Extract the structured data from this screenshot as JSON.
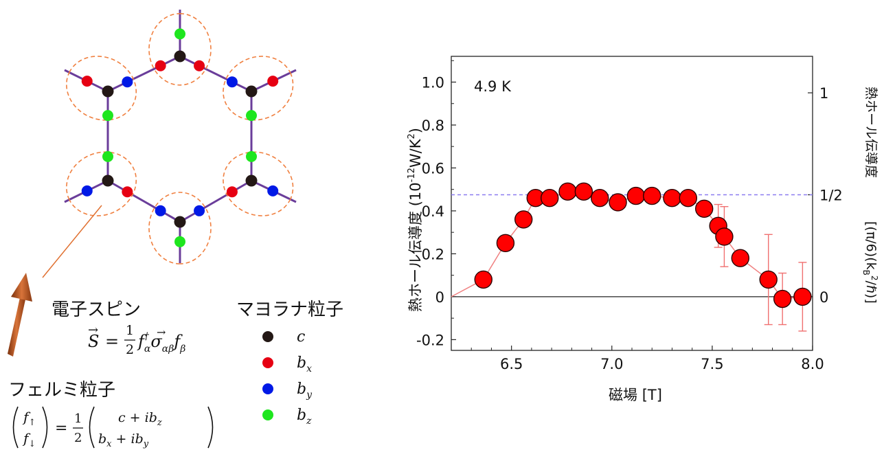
{
  "diagram": {
    "spin_title": "電子スピン",
    "spin_eq_lhs": "S",
    "spin_eq_half_num": "1",
    "spin_eq_half_den": "2",
    "fermion_title": "フェルミ粒子",
    "fermion_eq_top": "f",
    "fermion_eq_bottom": "f",
    "fermion_rhs_top": "c + ib",
    "fermion_rhs_bottom": "b",
    "majorana_title": "マヨラナ粒子",
    "legend": [
      {
        "label": "c",
        "sub": "",
        "color": "#231815"
      },
      {
        "label": "b",
        "sub": "x",
        "color": "#e60012"
      },
      {
        "label": "b",
        "sub": "y",
        "color": "#0019e6"
      },
      {
        "label": "b",
        "sub": "z",
        "color": "#1ee61e"
      }
    ],
    "bond_color": "#6a3d9a",
    "cluster_outline_color": "#f08040",
    "arrow_color": "#b5531f"
  },
  "chart_data": {
    "type": "scatter",
    "annotation": "4.9 K",
    "xlabel": "磁場 [T]",
    "ylabel": "熱ホール伝導度 (10",
    "ylabel_exp": "-12",
    "ylabel_unit": "W/K",
    "ylabel_unit_exp": "2",
    "ylabel_close": ")",
    "right_label": "熱ホール伝導度",
    "right_label_units": "[(π/6)(k",
    "xlim": [
      6.2,
      8.0
    ],
    "ylim": [
      -0.25,
      1.12
    ],
    "xticks": [
      "6.5",
      "7.0",
      "7.5",
      "8.0"
    ],
    "xtick_values": [
      6.5,
      7.0,
      7.5,
      8.0
    ],
    "yticks": [
      "-0.2",
      "0",
      "0.2",
      "0.4",
      "0.6",
      "0.8",
      "1.0"
    ],
    "ytick_values": [
      -0.2,
      0,
      0.2,
      0.4,
      0.6,
      0.8,
      1.0
    ],
    "right_ticks": [
      "0",
      "1/2",
      "1"
    ],
    "right_tick_values": [
      0,
      0.475,
      0.95
    ],
    "half_quantized_line": 0.475,
    "zero_line": 0,
    "line_start": [
      6.2,
      0.0
    ],
    "marker_color": "#ff0000",
    "line_color": "#f08080",
    "points": [
      {
        "x": 6.36,
        "y": 0.08
      },
      {
        "x": 6.47,
        "y": 0.25
      },
      {
        "x": 6.56,
        "y": 0.36
      },
      {
        "x": 6.62,
        "y": 0.46
      },
      {
        "x": 6.69,
        "y": 0.46
      },
      {
        "x": 6.78,
        "y": 0.49
      },
      {
        "x": 6.86,
        "y": 0.49
      },
      {
        "x": 6.94,
        "y": 0.46
      },
      {
        "x": 7.03,
        "y": 0.44
      },
      {
        "x": 7.12,
        "y": 0.47
      },
      {
        "x": 7.2,
        "y": 0.47
      },
      {
        "x": 7.3,
        "y": 0.46
      },
      {
        "x": 7.38,
        "y": 0.46,
        "err": 0.03
      },
      {
        "x": 7.46,
        "y": 0.41
      },
      {
        "x": 7.53,
        "y": 0.33,
        "err": 0.1
      },
      {
        "x": 7.56,
        "y": 0.28,
        "err": 0.14
      },
      {
        "x": 7.64,
        "y": 0.18
      },
      {
        "x": 7.78,
        "y": 0.08,
        "err": 0.21
      },
      {
        "x": 7.85,
        "y": -0.01,
        "err": 0.12
      },
      {
        "x": 7.95,
        "y": 0.0,
        "err": 0.16
      }
    ]
  }
}
